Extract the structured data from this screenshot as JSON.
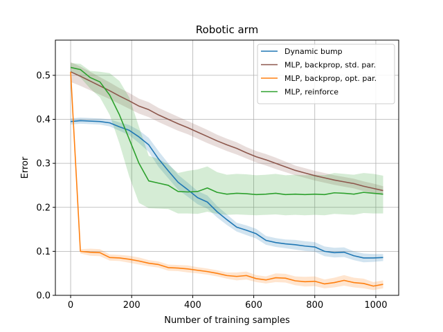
{
  "chart_data": {
    "type": "line",
    "title": "Robotic arm",
    "xlabel": "Number of training samples",
    "ylabel": "Error",
    "xlim": [
      -50,
      1075
    ],
    "ylim": [
      0.0,
      0.58
    ],
    "xticks": [
      0,
      200,
      400,
      600,
      800,
      1000
    ],
    "yticks": [
      0.0,
      0.1,
      0.2,
      0.3,
      0.4,
      0.5
    ],
    "grid": true,
    "legend_placement": "top-right",
    "x": [
      0,
      32,
      64,
      96,
      128,
      160,
      192,
      224,
      256,
      288,
      320,
      352,
      384,
      416,
      448,
      480,
      512,
      544,
      576,
      608,
      640,
      672,
      704,
      736,
      768,
      800,
      832,
      864,
      896,
      928,
      960,
      992,
      1024
    ],
    "series": [
      {
        "name": "Dynamic bump",
        "color": "#1f77b4",
        "values": [
          0.395,
          0.397,
          0.396,
          0.395,
          0.392,
          0.383,
          0.375,
          0.36,
          0.342,
          0.31,
          0.283,
          0.257,
          0.24,
          0.222,
          0.212,
          0.19,
          0.172,
          0.155,
          0.148,
          0.14,
          0.125,
          0.12,
          0.117,
          0.115,
          0.112,
          0.11,
          0.1,
          0.097,
          0.098,
          0.09,
          0.085,
          0.085,
          0.086
        ],
        "lower": [
          0.388,
          0.39,
          0.389,
          0.388,
          0.384,
          0.374,
          0.364,
          0.346,
          0.326,
          0.292,
          0.266,
          0.24,
          0.224,
          0.207,
          0.197,
          0.177,
          0.16,
          0.145,
          0.137,
          0.129,
          0.115,
          0.11,
          0.107,
          0.104,
          0.101,
          0.099,
          0.089,
          0.086,
          0.087,
          0.08,
          0.075,
          0.076,
          0.078
        ],
        "upper": [
          0.402,
          0.404,
          0.403,
          0.402,
          0.4,
          0.393,
          0.387,
          0.375,
          0.358,
          0.328,
          0.3,
          0.274,
          0.256,
          0.237,
          0.227,
          0.203,
          0.184,
          0.165,
          0.159,
          0.151,
          0.135,
          0.13,
          0.127,
          0.126,
          0.123,
          0.121,
          0.111,
          0.108,
          0.109,
          0.1,
          0.095,
          0.094,
          0.094
        ]
      },
      {
        "name": "MLP, backprop, std. par.",
        "color": "#8c564b",
        "values": [
          0.508,
          0.498,
          0.487,
          0.476,
          0.465,
          0.453,
          0.442,
          0.43,
          0.422,
          0.41,
          0.4,
          0.39,
          0.381,
          0.371,
          0.361,
          0.351,
          0.342,
          0.334,
          0.324,
          0.315,
          0.308,
          0.3,
          0.292,
          0.284,
          0.278,
          0.272,
          0.267,
          0.262,
          0.258,
          0.254,
          0.248,
          0.243,
          0.238
        ],
        "lower": [
          0.485,
          0.476,
          0.466,
          0.456,
          0.446,
          0.435,
          0.424,
          0.413,
          0.405,
          0.394,
          0.384,
          0.374,
          0.366,
          0.356,
          0.346,
          0.337,
          0.328,
          0.32,
          0.311,
          0.302,
          0.295,
          0.287,
          0.28,
          0.273,
          0.267,
          0.261,
          0.256,
          0.251,
          0.247,
          0.243,
          0.237,
          0.232,
          0.228
        ],
        "upper": [
          0.53,
          0.52,
          0.508,
          0.496,
          0.484,
          0.471,
          0.46,
          0.447,
          0.439,
          0.426,
          0.416,
          0.406,
          0.396,
          0.386,
          0.376,
          0.365,
          0.356,
          0.348,
          0.337,
          0.328,
          0.321,
          0.313,
          0.304,
          0.295,
          0.289,
          0.283,
          0.278,
          0.273,
          0.269,
          0.265,
          0.259,
          0.254,
          0.248
        ]
      },
      {
        "name": "MLP, backprop, opt. par.",
        "color": "#ff7f0e",
        "values": [
          0.508,
          0.1,
          0.098,
          0.097,
          0.086,
          0.085,
          0.082,
          0.078,
          0.073,
          0.07,
          0.063,
          0.062,
          0.06,
          0.057,
          0.054,
          0.05,
          0.045,
          0.043,
          0.045,
          0.038,
          0.035,
          0.04,
          0.039,
          0.033,
          0.031,
          0.032,
          0.026,
          0.029,
          0.034,
          0.029,
          0.027,
          0.021,
          0.025
        ],
        "lower": [
          0.49,
          0.095,
          0.09,
          0.089,
          0.079,
          0.078,
          0.074,
          0.07,
          0.066,
          0.063,
          0.056,
          0.055,
          0.052,
          0.05,
          0.047,
          0.043,
          0.038,
          0.034,
          0.036,
          0.03,
          0.027,
          0.03,
          0.029,
          0.023,
          0.02,
          0.021,
          0.016,
          0.018,
          0.022,
          0.018,
          0.016,
          0.012,
          0.016
        ],
        "upper": [
          0.525,
          0.105,
          0.106,
          0.105,
          0.093,
          0.092,
          0.09,
          0.086,
          0.08,
          0.077,
          0.07,
          0.069,
          0.068,
          0.064,
          0.061,
          0.057,
          0.052,
          0.052,
          0.054,
          0.046,
          0.043,
          0.05,
          0.049,
          0.043,
          0.042,
          0.043,
          0.036,
          0.04,
          0.046,
          0.04,
          0.038,
          0.03,
          0.034
        ]
      },
      {
        "name": "MLP, reinforce",
        "color": "#2ca02c",
        "values": [
          0.518,
          0.513,
          0.495,
          0.485,
          0.455,
          0.41,
          0.355,
          0.3,
          0.26,
          0.255,
          0.25,
          0.236,
          0.235,
          0.236,
          0.244,
          0.234,
          0.23,
          0.232,
          0.231,
          0.229,
          0.23,
          0.232,
          0.229,
          0.23,
          0.229,
          0.23,
          0.229,
          0.233,
          0.232,
          0.23,
          0.234,
          0.232,
          0.23
        ],
        "lower": [
          0.508,
          0.495,
          0.47,
          0.45,
          0.41,
          0.345,
          0.27,
          0.21,
          0.198,
          0.197,
          0.196,
          0.186,
          0.186,
          0.185,
          0.19,
          0.185,
          0.183,
          0.184,
          0.183,
          0.182,
          0.183,
          0.184,
          0.182,
          0.183,
          0.182,
          0.183,
          0.182,
          0.185,
          0.184,
          0.183,
          0.187,
          0.186,
          0.186
        ],
        "upper": [
          0.528,
          0.526,
          0.51,
          0.508,
          0.505,
          0.487,
          0.45,
          0.383,
          0.317,
          0.31,
          0.297,
          0.278,
          0.283,
          0.286,
          0.293,
          0.28,
          0.274,
          0.276,
          0.275,
          0.273,
          0.274,
          0.276,
          0.273,
          0.274,
          0.273,
          0.274,
          0.273,
          0.278,
          0.276,
          0.274,
          0.278,
          0.276,
          0.272
        ]
      }
    ]
  }
}
